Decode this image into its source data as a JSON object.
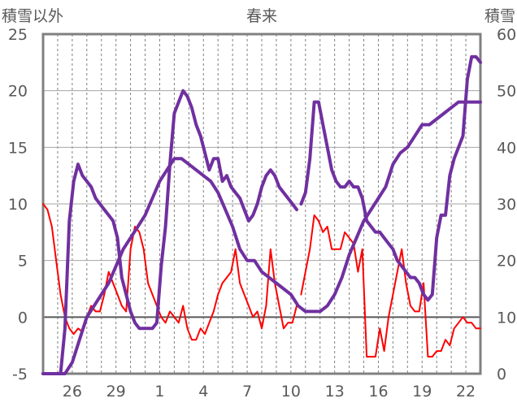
{
  "chart_data": {
    "type": "line",
    "title": "春来",
    "left_axis_label": "積雪以外",
    "right_axis_label": "積雪",
    "left_ylim": [
      -5,
      25
    ],
    "left_ticks": [
      "25",
      "20",
      "15",
      "10",
      "5",
      "0",
      "-5"
    ],
    "right_ylim": [
      0,
      60
    ],
    "right_ticks": [
      "60",
      "50",
      "40",
      "30",
      "20",
      "10",
      "0"
    ],
    "x_tick_labels": [
      "26",
      "29",
      "1",
      "4",
      "7",
      "10",
      "13",
      "16",
      "19",
      "22"
    ],
    "x_tick_positions": [
      2,
      5,
      8,
      11,
      14,
      17,
      20,
      23,
      26,
      29
    ],
    "x_range": [
      0,
      30
    ],
    "grid": "vertical dashed lines at each day, horizontal solid lines at each 5 units",
    "colors": {
      "temperature": "#ff0000",
      "snow_depth": "#7030a0",
      "grid": "#808080",
      "frame": "#808080",
      "text": "#595959"
    },
    "series": [
      {
        "axis": "left",
        "color": "#ff0000",
        "x": [
          0.0,
          0.3,
          0.6,
          0.9,
          1.2,
          1.5,
          1.8,
          2.1,
          2.4,
          2.7,
          3.0,
          3.3,
          3.6,
          3.9,
          4.2,
          4.5,
          4.8,
          5.1,
          5.4,
          5.7,
          6.0,
          6.3,
          6.6,
          6.9,
          7.2,
          7.5,
          7.8,
          8.1,
          8.4,
          8.7,
          9.0,
          9.3,
          9.6,
          9.9,
          10.2,
          10.5,
          10.8,
          11.1,
          11.4,
          11.7,
          12.0,
          12.3,
          12.6,
          12.9,
          13.2,
          13.5,
          13.8,
          14.1,
          14.4,
          14.7,
          15.0,
          15.3,
          15.6,
          15.9,
          16.2,
          16.5,
          16.8,
          17.1,
          17.4
        ],
        "y": [
          10,
          9.5,
          8,
          5,
          2,
          0,
          -1,
          -1.5,
          -1,
          -1.3,
          0,
          1,
          0.5,
          0.5,
          2,
          4,
          3,
          2,
          1,
          0.5,
          6,
          8,
          7.5,
          6,
          3,
          2,
          1,
          0,
          -0.5,
          0.5,
          0,
          -0.5,
          1,
          -1,
          -2,
          -2,
          -1,
          -1.5,
          -0.5,
          0.5,
          2,
          3,
          3.5,
          4,
          6,
          3,
          2,
          1,
          0,
          0.5,
          -1,
          1,
          6,
          3,
          1,
          -1,
          -0.5,
          -0.5,
          1
        ]
      },
      {
        "axis": "left",
        "color": "#ff0000",
        "x": [
          17.7,
          18.0,
          18.3,
          18.6,
          18.9,
          19.2,
          19.5,
          19.8,
          20.1,
          20.4,
          20.7,
          21.0,
          21.3,
          21.6,
          21.9,
          22.2,
          22.5,
          22.8,
          23.1,
          23.4,
          23.7,
          24.0,
          24.3,
          24.6,
          24.9,
          25.2,
          25.5,
          25.8,
          26.1,
          26.4,
          26.7,
          27.0,
          27.3,
          27.6,
          27.9,
          28.2,
          28.5,
          28.8,
          29.1,
          29.4,
          29.7,
          30.0
        ],
        "y": [
          2,
          4,
          6,
          9,
          8.5,
          7.5,
          8,
          6,
          6,
          6,
          7.5,
          7,
          6.5,
          4,
          6,
          -3.5,
          -3.5,
          -3.5,
          -1,
          -3,
          0,
          2,
          4,
          6,
          3,
          1,
          0.5,
          0.5,
          3,
          -3.5,
          -3.5,
          -3,
          -3,
          -2,
          -2.5,
          -1,
          -0.5,
          0,
          -0.5,
          -0.5,
          -1,
          -1
        ]
      },
      {
        "axis": "right",
        "color": "#7030a0",
        "x": [
          0.0,
          0.5,
          1.0,
          1.5,
          2.0,
          2.5,
          3.0,
          3.5,
          4.0,
          4.5,
          5.0,
          5.5,
          6.0,
          6.5,
          7.0,
          7.5,
          8.0,
          8.5,
          9.0,
          9.5,
          10.0,
          10.5,
          11.0,
          11.5,
          12.0,
          12.5,
          13.0,
          13.5,
          14.0,
          14.5,
          15.0,
          15.5,
          16.0,
          16.5,
          17.0,
          17.5,
          18.0,
          18.5,
          19.0,
          19.5,
          20.0,
          20.5,
          21.0,
          21.5,
          22.0,
          22.5,
          23.0,
          23.5,
          24.0,
          24.5,
          25.0,
          25.5,
          26.0,
          26.5,
          27.0,
          27.5,
          28.0,
          28.5,
          29.0,
          29.5,
          30.0
        ],
        "y": [
          0,
          0,
          0,
          0,
          2,
          6,
          10,
          12,
          14,
          16,
          19,
          22,
          24,
          26,
          28,
          31,
          34,
          36,
          38,
          38,
          37,
          36,
          35,
          34,
          32,
          29,
          26,
          22,
          20,
          20,
          18,
          17,
          16,
          15,
          14,
          12,
          11,
          11,
          11,
          12,
          14,
          17,
          21,
          24,
          27,
          29,
          31,
          33,
          37,
          39,
          40,
          42,
          44,
          44,
          45,
          46,
          47,
          48,
          48,
          48,
          48
        ]
      },
      {
        "axis": "right",
        "color": "#7030a0",
        "x": [
          0.0,
          0.3,
          0.6,
          0.9,
          1.2,
          1.5,
          1.8,
          2.1,
          2.4,
          2.7,
          3.0,
          3.3,
          3.6,
          3.9,
          4.2,
          4.5,
          4.8,
          5.1,
          5.4,
          5.7,
          6.0,
          6.3,
          6.6,
          6.9,
          7.2,
          7.5,
          7.8,
          8.1,
          8.4,
          8.7,
          9.0,
          9.3,
          9.6,
          9.9,
          10.2,
          10.5,
          10.8,
          11.1,
          11.4,
          11.7,
          12.0,
          12.3,
          12.6,
          12.9,
          13.2,
          13.5,
          13.8,
          14.1,
          14.4,
          14.7,
          15.0,
          15.3,
          15.6,
          15.9,
          16.2,
          16.5,
          16.8,
          17.1,
          17.4
        ],
        "y": [
          0,
          0,
          0,
          0,
          0,
          8,
          27,
          34,
          37,
          35,
          34,
          33,
          31,
          30,
          29,
          28,
          27,
          24,
          17,
          14,
          11,
          9,
          8,
          8,
          8,
          8,
          9,
          19,
          26,
          37,
          46,
          48,
          50,
          49,
          47,
          44,
          42,
          39,
          36,
          38,
          38,
          34,
          35,
          33,
          32,
          31,
          29,
          27,
          28,
          30,
          33,
          35,
          36,
          35,
          33,
          32,
          31,
          30,
          29
        ]
      },
      {
        "axis": "right",
        "color": "#7030a0",
        "x": [
          17.7,
          18.0,
          18.3,
          18.6,
          18.9,
          19.2,
          19.5,
          19.8,
          20.1,
          20.4,
          20.7,
          21.0,
          21.3,
          21.6,
          21.9,
          22.2,
          22.5,
          22.8,
          23.1,
          23.4,
          23.7,
          24.0,
          24.3,
          24.6,
          24.9,
          25.2,
          25.5,
          25.8,
          26.1,
          26.4,
          26.7,
          27.0,
          27.3,
          27.6,
          27.9,
          28.2,
          28.5,
          28.8,
          29.1,
          29.4,
          29.7,
          30.0
        ],
        "y": [
          30,
          32,
          38,
          48,
          48,
          44,
          40,
          36,
          34,
          33,
          33,
          34,
          33,
          33,
          31,
          27,
          26,
          25,
          25,
          24,
          23,
          22,
          20,
          19,
          18,
          17,
          17,
          16,
          14,
          13,
          14,
          24,
          28,
          28,
          35,
          38,
          40,
          42,
          52,
          56,
          56,
          55
        ]
      }
    ]
  }
}
